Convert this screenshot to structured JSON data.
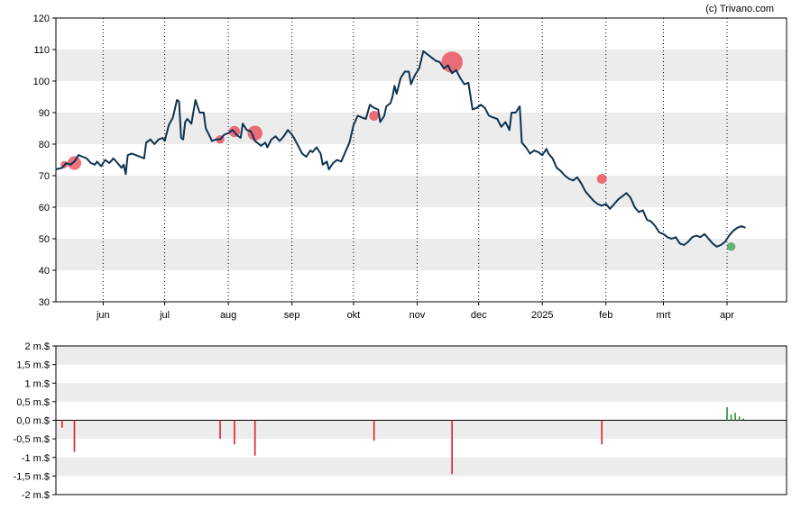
{
  "credit": "(c) Trivano.com",
  "colors": {
    "price_line": "#0d3350",
    "band": "#ececec",
    "sell_bubble": "#e8414f",
    "buy_bubble": "#3a9a4a",
    "sell_bar": "#e01f2d",
    "buy_bar": "#2e8b3a"
  },
  "chart_data": [
    {
      "type": "line",
      "title": "",
      "xlabel": "",
      "ylabel": "",
      "ylim": [
        30,
        120
      ],
      "y_ticks": [
        "30",
        "40",
        "50",
        "60",
        "70",
        "80",
        "90",
        "100",
        "110",
        "120"
      ],
      "grid": "alternating horizontal bands, dotted vertical month lines",
      "x_tick_labels": [
        {
          "label": "jun",
          "x": 23
        },
        {
          "label": "jul",
          "x": 53
        },
        {
          "label": "aug",
          "x": 84
        },
        {
          "label": "sep",
          "x": 115
        },
        {
          "label": "okt",
          "x": 145
        },
        {
          "label": "nov",
          "x": 176
        },
        {
          "label": "dec",
          "x": 206
        },
        {
          "label": "2025",
          "x": 237
        },
        {
          "label": "feb",
          "x": 268
        },
        {
          "label": "mrt",
          "x": 296
        },
        {
          "label": "apr",
          "x": 327
        }
      ],
      "x_range": [
        0,
        356
      ],
      "series": [
        {
          "values": [
            [
              0,
              72.0
            ],
            [
              3,
              72.5
            ],
            [
              5,
              74.0
            ],
            [
              7,
              73.5
            ],
            [
              9,
              74.5
            ],
            [
              11,
              76.5
            ],
            [
              13,
              76.0
            ],
            [
              15,
              75.5
            ],
            [
              17,
              74.0
            ],
            [
              19,
              73.5
            ],
            [
              20,
              74.5
            ],
            [
              22,
              73.0
            ],
            [
              24,
              75.0
            ],
            [
              26,
              74.0
            ],
            [
              28,
              75.5
            ],
            [
              30,
              74.0
            ],
            [
              32,
              72.5
            ],
            [
              33,
              73.5
            ],
            [
              34,
              70.5
            ],
            [
              35,
              76.5
            ],
            [
              37,
              77.0
            ],
            [
              39,
              76.5
            ],
            [
              41,
              76.0
            ],
            [
              43,
              75.5
            ],
            [
              44,
              80.5
            ],
            [
              46,
              81.5
            ],
            [
              48,
              80.0
            ],
            [
              50,
              81.5
            ],
            [
              52,
              82.0
            ],
            [
              53,
              81.0
            ],
            [
              55,
              86.0
            ],
            [
              57,
              88.5
            ],
            [
              59,
              94.0
            ],
            [
              60,
              93.5
            ],
            [
              61,
              82.0
            ],
            [
              62,
              81.5
            ],
            [
              63,
              87.0
            ],
            [
              64,
              88.0
            ],
            [
              66,
              86.5
            ],
            [
              68,
              94.0
            ],
            [
              70,
              90.0
            ],
            [
              72,
              90.0
            ],
            [
              73,
              85.0
            ],
            [
              75,
              82.5
            ],
            [
              76,
              81.0
            ],
            [
              78,
              81.5
            ],
            [
              80,
              81.5
            ],
            [
              82,
              83.0
            ],
            [
              84,
              83.5
            ],
            [
              86,
              84.5
            ],
            [
              88,
              83.0
            ],
            [
              90,
              82.0
            ],
            [
              91,
              86.5
            ],
            [
              93,
              84.5
            ],
            [
              95,
              84.0
            ],
            [
              97,
              81.0
            ],
            [
              100,
              79.5
            ],
            [
              102,
              80.5
            ],
            [
              103,
              79.0
            ],
            [
              105,
              81.5
            ],
            [
              107,
              82.5
            ],
            [
              109,
              81.0
            ],
            [
              111,
              82.5
            ],
            [
              113,
              84.5
            ],
            [
              115,
              83.0
            ],
            [
              116,
              82.0
            ],
            [
              118,
              79.5
            ],
            [
              120,
              77.0
            ],
            [
              122,
              76.0
            ],
            [
              124,
              78.0
            ],
            [
              125,
              77.5
            ],
            [
              127,
              79.0
            ],
            [
              129,
              77.0
            ],
            [
              130,
              73.5
            ],
            [
              132,
              74.5
            ],
            [
              133,
              72.0
            ],
            [
              135,
              74.0
            ],
            [
              137,
              75.0
            ],
            [
              139,
              74.5
            ],
            [
              141,
              77.5
            ],
            [
              143,
              80.5
            ],
            [
              145,
              86.0
            ],
            [
              147,
              89.0
            ],
            [
              149,
              88.5
            ],
            [
              151,
              88.0
            ],
            [
              153,
              92.5
            ],
            [
              155,
              91.5
            ],
            [
              157,
              91.0
            ],
            [
              158,
              87.0
            ],
            [
              160,
              89.0
            ],
            [
              161,
              92.0
            ],
            [
              163,
              93.0
            ],
            [
              164,
              95.0
            ],
            [
              165,
              98.5
            ],
            [
              166,
              96.0
            ],
            [
              168,
              101.0
            ],
            [
              170,
              103.0
            ],
            [
              172,
              103.0
            ],
            [
              173,
              99.0
            ],
            [
              175,
              102.0
            ],
            [
              177,
              104.0
            ],
            [
              179,
              109.5
            ],
            [
              181,
              108.5
            ],
            [
              183,
              107.5
            ],
            [
              185,
              106.5
            ],
            [
              187,
              106.0
            ],
            [
              189,
              104.0
            ],
            [
              191,
              105.0
            ],
            [
              193,
              102.5
            ],
            [
              195,
              103.5
            ],
            [
              197,
              101.0
            ],
            [
              199,
              99.0
            ],
            [
              201,
              99.5
            ],
            [
              203,
              91.0
            ],
            [
              205,
              91.5
            ],
            [
              207,
              92.5
            ],
            [
              209,
              91.5
            ],
            [
              211,
              89.0
            ],
            [
              213,
              88.5
            ],
            [
              215,
              88.0
            ],
            [
              217,
              85.5
            ],
            [
              219,
              87.0
            ],
            [
              221,
              84.5
            ],
            [
              222,
              90.0
            ],
            [
              224,
              90.0
            ],
            [
              226,
              92.0
            ],
            [
              227,
              80.5
            ],
            [
              229,
              79.0
            ],
            [
              231,
              77.0
            ],
            [
              233,
              78.0
            ],
            [
              235,
              77.5
            ],
            [
              237,
              76.5
            ],
            [
              239,
              78.5
            ],
            [
              240,
              77.0
            ],
            [
              242,
              75.5
            ],
            [
              244,
              72.5
            ],
            [
              246,
              71.5
            ],
            [
              248,
              70.0
            ],
            [
              250,
              69.0
            ],
            [
              252,
              68.5
            ],
            [
              254,
              69.5
            ],
            [
              256,
              67.5
            ],
            [
              258,
              65.0
            ],
            [
              260,
              63.5
            ],
            [
              262,
              62.0
            ],
            [
              264,
              61.0
            ],
            [
              266,
              60.5
            ],
            [
              268,
              61.0
            ],
            [
              270,
              59.5
            ],
            [
              272,
              61.0
            ],
            [
              274,
              62.5
            ],
            [
              276,
              63.5
            ],
            [
              278,
              64.5
            ],
            [
              280,
              63.0
            ],
            [
              282,
              60.0
            ],
            [
              284,
              58.5
            ],
            [
              286,
              59.0
            ],
            [
              288,
              56.0
            ],
            [
              290,
              55.5
            ],
            [
              292,
              54.0
            ],
            [
              294,
              52.0
            ],
            [
              296,
              51.5
            ],
            [
              298,
              50.5
            ],
            [
              300,
              50.0
            ],
            [
              302,
              50.5
            ],
            [
              304,
              48.5
            ],
            [
              306,
              48.0
            ],
            [
              308,
              49.0
            ],
            [
              310,
              50.5
            ],
            [
              312,
              51.0
            ],
            [
              314,
              50.5
            ],
            [
              316,
              51.5
            ],
            [
              318,
              50.0
            ],
            [
              320,
              48.5
            ],
            [
              322,
              47.5
            ],
            [
              324,
              48.0
            ],
            [
              326,
              49.0
            ],
            [
              328,
              51.0
            ],
            [
              330,
              52.5
            ],
            [
              332,
              53.5
            ],
            [
              334,
              54.0
            ],
            [
              336,
              53.5
            ]
          ]
        }
      ],
      "transaction_markers": [
        {
          "x": 4,
          "y": 73.5,
          "size": 0.15,
          "kind": "sell"
        },
        {
          "x": 9,
          "y": 74.0,
          "size": 0.4,
          "kind": "sell"
        },
        {
          "x": 80,
          "y": 81.5,
          "size": 0.2,
          "kind": "sell"
        },
        {
          "x": 87,
          "y": 84.0,
          "size": 0.3,
          "kind": "sell"
        },
        {
          "x": 97,
          "y": 83.5,
          "size": 0.45,
          "kind": "sell"
        },
        {
          "x": 155,
          "y": 89.0,
          "size": 0.25,
          "kind": "sell"
        },
        {
          "x": 193,
          "y": 106.0,
          "size": 0.7,
          "kind": "sell"
        },
        {
          "x": 266,
          "y": 69.0,
          "size": 0.25,
          "kind": "sell"
        },
        {
          "x": 329,
          "y": 47.5,
          "size": 0.2,
          "kind": "buy"
        }
      ]
    },
    {
      "type": "bar",
      "title": "",
      "xlabel": "",
      "ylabel": "",
      "ylim": [
        -2,
        2
      ],
      "y_ticks": [
        "-2 m.$",
        "-1,5 m.$",
        "-1 m.$",
        "-0,5 m.$",
        "0,0 m.$",
        "0,5 m.$",
        "1 m.$",
        "1,5 m.$",
        "2 m.$"
      ],
      "grid": "alternating horizontal bands",
      "series": [
        {
          "name": "transactions",
          "points": [
            {
              "x": 3,
              "value": -0.2,
              "kind": "sell"
            },
            {
              "x": 9,
              "value": -0.85,
              "kind": "sell"
            },
            {
              "x": 80,
              "value": -0.5,
              "kind": "sell"
            },
            {
              "x": 87,
              "value": -0.65,
              "kind": "sell"
            },
            {
              "x": 97,
              "value": -0.95,
              "kind": "sell"
            },
            {
              "x": 155,
              "value": -0.55,
              "kind": "sell"
            },
            {
              "x": 193,
              "value": -1.45,
              "kind": "sell"
            },
            {
              "x": 266,
              "value": -0.65,
              "kind": "sell"
            },
            {
              "x": 327,
              "value": 0.35,
              "kind": "buy"
            },
            {
              "x": 329,
              "value": 0.15,
              "kind": "buy"
            },
            {
              "x": 331,
              "value": 0.2,
              "kind": "buy"
            },
            {
              "x": 333,
              "value": 0.1,
              "kind": "buy"
            },
            {
              "x": 335,
              "value": 0.05,
              "kind": "buy"
            }
          ]
        }
      ]
    }
  ]
}
